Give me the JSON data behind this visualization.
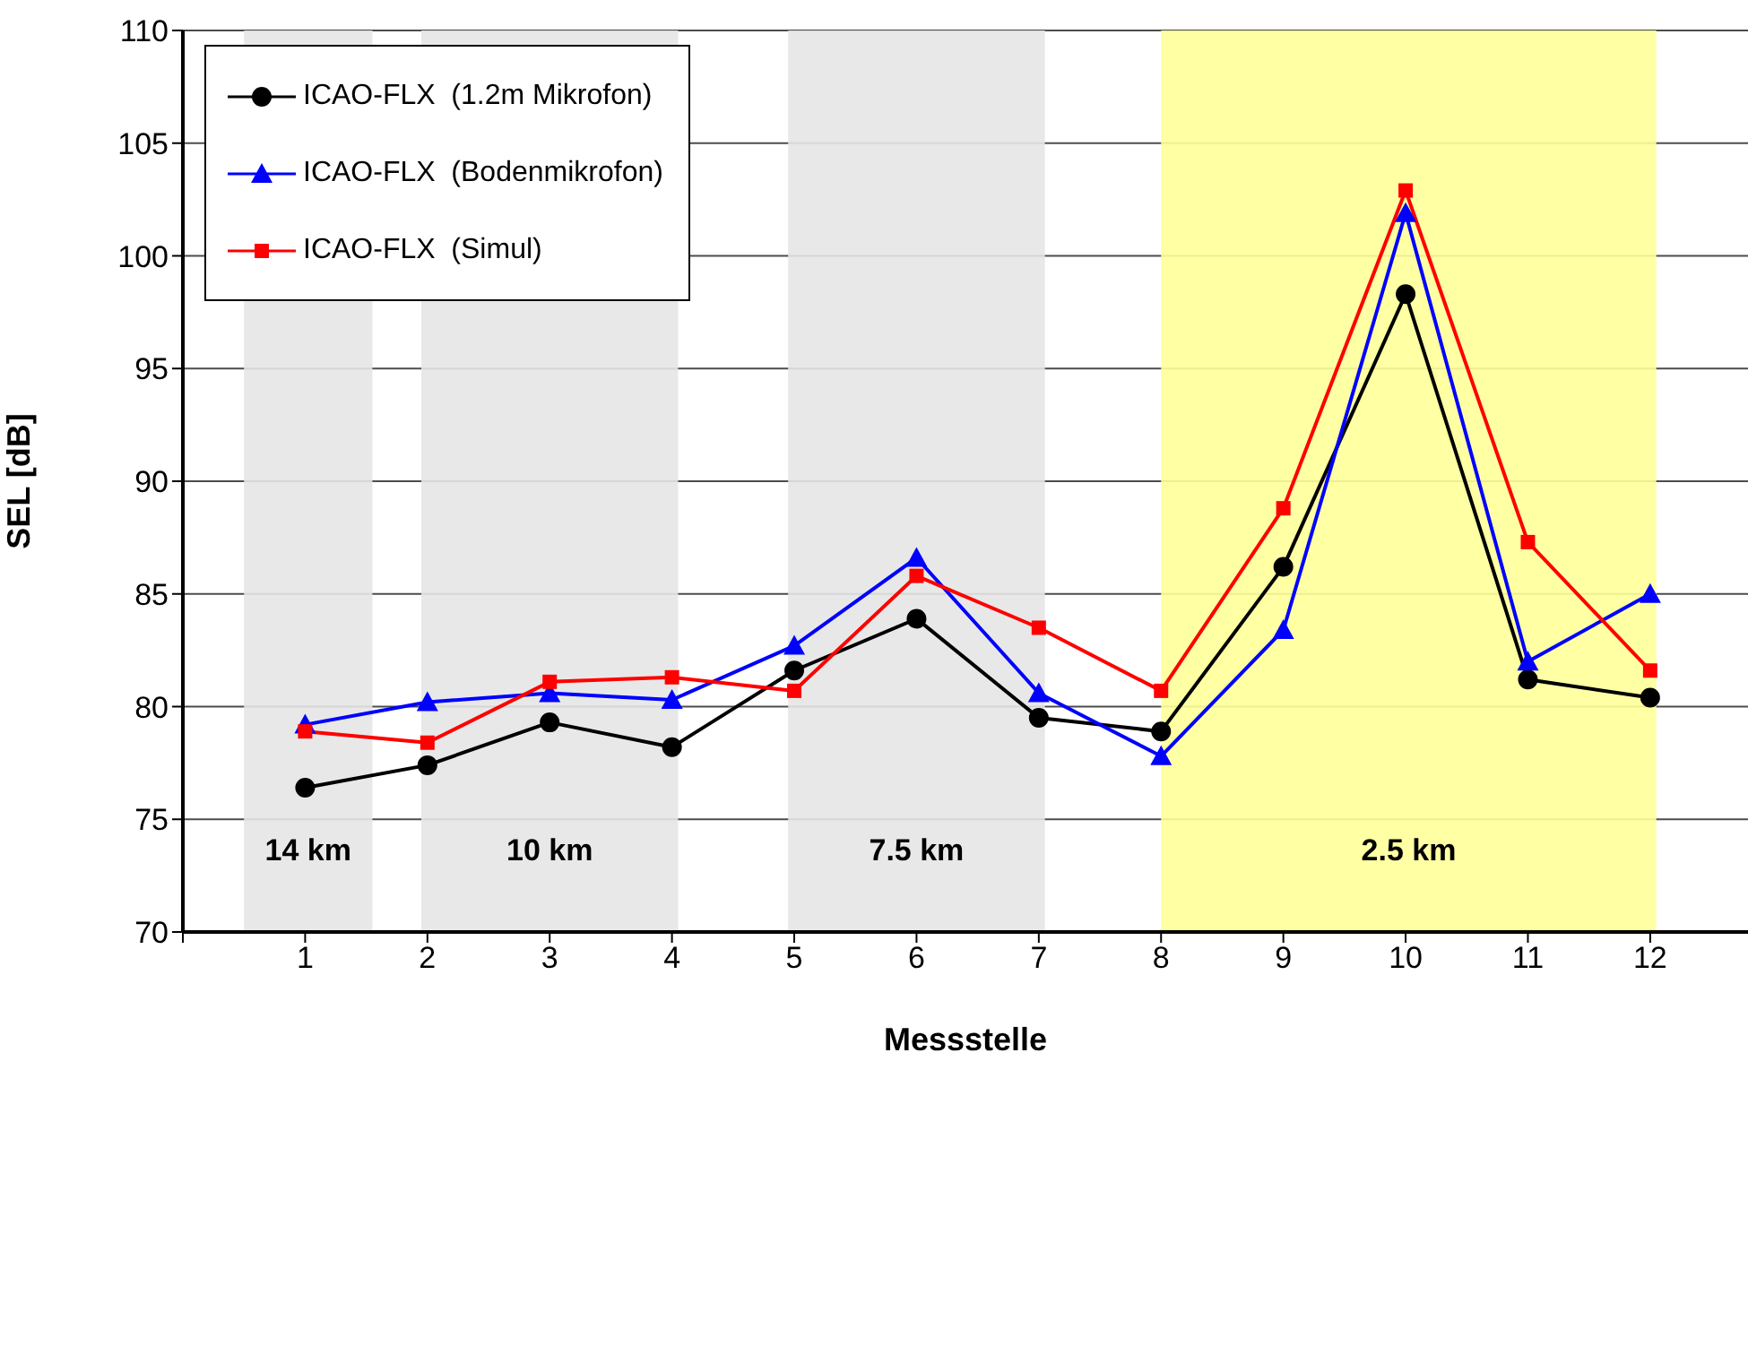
{
  "chart_data": {
    "type": "line",
    "xlabel": "Messstelle",
    "ylabel": "SEL [dB]",
    "x": [
      1,
      2,
      3,
      4,
      5,
      6,
      7,
      8,
      9,
      10,
      11,
      12
    ],
    "series": [
      {
        "name": "ICAO-FLX  (1.2m Mikrofon)",
        "color": "#000000",
        "marker": "circle",
        "values": [
          76.4,
          77.4,
          79.3,
          78.2,
          81.6,
          83.9,
          79.5,
          78.9,
          86.2,
          98.3,
          81.2,
          80.4
        ]
      },
      {
        "name": "ICAO-FLX  (Bodenmikrofon)",
        "color": "#0000ff",
        "marker": "triangle",
        "values": [
          79.2,
          80.2,
          80.6,
          80.3,
          82.7,
          86.6,
          80.6,
          77.8,
          83.4,
          101.9,
          82.0,
          85.0
        ]
      },
      {
        "name": "ICAO-FLX  (Simul)",
        "color": "#ff0000",
        "marker": "square",
        "values": [
          78.9,
          78.4,
          81.1,
          81.3,
          80.7,
          85.8,
          83.5,
          80.7,
          88.8,
          102.9,
          87.3,
          81.6
        ]
      }
    ],
    "xlim": [
      0,
      12.8
    ],
    "xticks": [
      {
        "value": 0,
        "label": null
      },
      1,
      2,
      3,
      4,
      5,
      6,
      7,
      8,
      9,
      10,
      11,
      12
    ],
    "ylim": [
      70,
      110
    ],
    "yticks": [
      70,
      75,
      80,
      85,
      90,
      95,
      100,
      105,
      110
    ],
    "bands": [
      {
        "axis": "x",
        "from": 0.5,
        "to": 1.55,
        "label": "14 km",
        "color": "#e6e6e6"
      },
      {
        "axis": "x",
        "from": 1.95,
        "to": 4.05,
        "label": "10 km",
        "color": "#e6e6e6"
      },
      {
        "axis": "x",
        "from": 4.95,
        "to": 7.05,
        "label": "7.5 km",
        "color": "#e6e6e6"
      },
      {
        "axis": "x",
        "from": 8.0,
        "to": 12.05,
        "label": "2.5 km",
        "color": "#ffff99"
      }
    ],
    "grid": "y",
    "legend": "top left"
  }
}
